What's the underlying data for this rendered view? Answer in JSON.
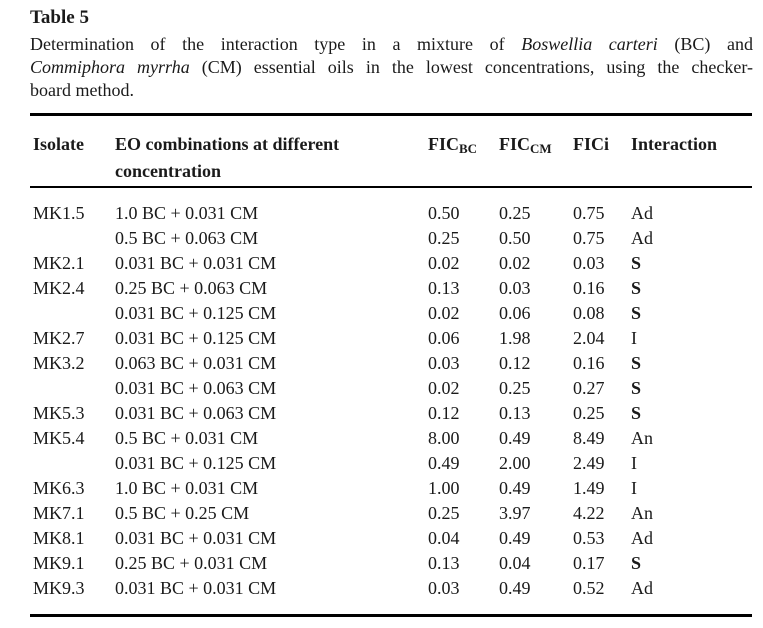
{
  "title": "Table 5",
  "caption": {
    "line1_pre": "Determination of the interaction type in a mixture of ",
    "line1_italic": "Boswellia carteri",
    "line1_post": " (BC) and",
    "line2_italic": "Commiphora myrrha",
    "line2_post": " (CM) essential oils in the lowest concentrations, using the checker-",
    "line3": "board method."
  },
  "table": {
    "columns": [
      {
        "label": "Isolate"
      },
      {
        "label": "EO combinations at different concentration"
      },
      {
        "label": "FIC",
        "sub": "BC"
      },
      {
        "label": "FIC",
        "sub": "CM"
      },
      {
        "label": "FICi"
      },
      {
        "label": "Interaction"
      }
    ],
    "rows": [
      {
        "isolate": "MK1.5",
        "combo": "1.0 BC + 0.031 CM",
        "fic_bc": "0.50",
        "fic_cm": "0.25",
        "fici": "0.75",
        "interaction": "Ad",
        "interaction_bold": false
      },
      {
        "isolate": "",
        "combo": "0.5 BC + 0.063 CM",
        "fic_bc": "0.25",
        "fic_cm": "0.50",
        "fici": "0.75",
        "interaction": "Ad",
        "interaction_bold": false
      },
      {
        "isolate": "MK2.1",
        "combo": "0.031 BC + 0.031 CM",
        "fic_bc": "0.02",
        "fic_cm": "0.02",
        "fici": "0.03",
        "interaction": "S",
        "interaction_bold": true
      },
      {
        "isolate": "MK2.4",
        "combo": "0.25 BC + 0.063 CM",
        "fic_bc": "0.13",
        "fic_cm": "0.03",
        "fici": "0.16",
        "interaction": "S",
        "interaction_bold": true
      },
      {
        "isolate": "",
        "combo": "0.031 BC + 0.125 CM",
        "fic_bc": "0.02",
        "fic_cm": "0.06",
        "fici": "0.08",
        "interaction": "S",
        "interaction_bold": true
      },
      {
        "isolate": "MK2.7",
        "combo": "0.031 BC + 0.125 CM",
        "fic_bc": "0.06",
        "fic_cm": "1.98",
        "fici": "2.04",
        "interaction": "I",
        "interaction_bold": false
      },
      {
        "isolate": "MK3.2",
        "combo": "0.063 BC + 0.031 CM",
        "fic_bc": "0.03",
        "fic_cm": "0.12",
        "fici": "0.16",
        "interaction": "S",
        "interaction_bold": true
      },
      {
        "isolate": "",
        "combo": "0.031 BC + 0.063 CM",
        "fic_bc": "0.02",
        "fic_cm": "0.25",
        "fici": "0.27",
        "interaction": "S",
        "interaction_bold": true
      },
      {
        "isolate": "MK5.3",
        "combo": "0.031 BC + 0.063 CM",
        "fic_bc": "0.12",
        "fic_cm": "0.13",
        "fici": "0.25",
        "interaction": "S",
        "interaction_bold": true
      },
      {
        "isolate": "MK5.4",
        "combo": "0.5 BC + 0.031 CM",
        "fic_bc": "8.00",
        "fic_cm": "0.49",
        "fici": "8.49",
        "interaction": "An",
        "interaction_bold": false
      },
      {
        "isolate": "",
        "combo": "0.031 BC + 0.125 CM",
        "fic_bc": "0.49",
        "fic_cm": "2.00",
        "fici": "2.49",
        "interaction": "I",
        "interaction_bold": false
      },
      {
        "isolate": "MK6.3",
        "combo": "1.0 BC + 0.031 CM",
        "fic_bc": "1.00",
        "fic_cm": "0.49",
        "fici": "1.49",
        "interaction": "I",
        "interaction_bold": false
      },
      {
        "isolate": "MK7.1",
        "combo": "0.5 BC + 0.25 CM",
        "fic_bc": "0.25",
        "fic_cm": "3.97",
        "fici": "4.22",
        "interaction": "An",
        "interaction_bold": false
      },
      {
        "isolate": "MK8.1",
        "combo": "0.031 BC + 0.031 CM",
        "fic_bc": "0.04",
        "fic_cm": "0.49",
        "fici": "0.53",
        "interaction": "Ad",
        "interaction_bold": false
      },
      {
        "isolate": "MK9.1",
        "combo": "0.25 BC + 0.031 CM",
        "fic_bc": "0.13",
        "fic_cm": "0.04",
        "fici": "0.17",
        "interaction": "S",
        "interaction_bold": true
      },
      {
        "isolate": "MK9.3",
        "combo": "0.031 BC + 0.031 CM",
        "fic_bc": "0.03",
        "fic_cm": "0.49",
        "fici": "0.52",
        "interaction": "Ad",
        "interaction_bold": false
      }
    ]
  },
  "colors": {
    "text": "#1a1a1a",
    "rule": "#000000",
    "background": "#ffffff"
  }
}
